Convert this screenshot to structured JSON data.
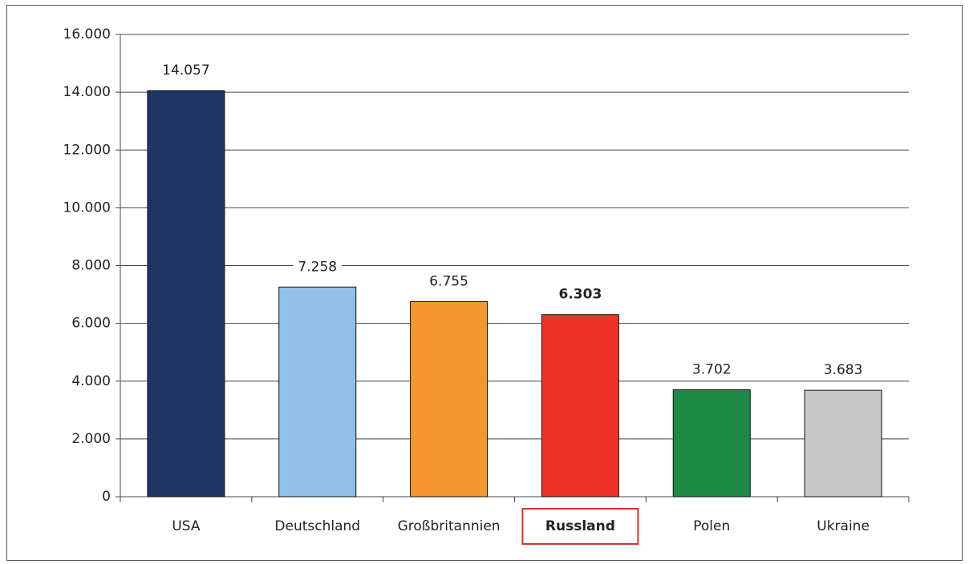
{
  "chart_data": {
    "type": "bar",
    "categories": [
      "USA",
      "Deutschland",
      "Großbritannien",
      "Russland",
      "Polen",
      "Ukraine"
    ],
    "values": [
      14057,
      7258,
      6755,
      6303,
      3702,
      3683
    ],
    "value_labels": [
      "14.057",
      "7.258",
      "6.755",
      "6.303",
      "3.702",
      "3.683"
    ],
    "colors": [
      "#1f3566",
      "#92c0e8",
      "#f7962e",
      "#ee3429",
      "#1e8a45",
      "#c8c8c8"
    ],
    "highlight": "Russland",
    "ylim": [
      0,
      16000
    ],
    "yticks": [
      0,
      {
        "value": 2000,
        "label": "2.000"
      },
      {
        "value": 4000,
        "label": "4.000"
      },
      {
        "value": 6000,
        "label": "6.000"
      },
      {
        "value": 8000,
        "label": "8.000"
      },
      {
        "value": 10000,
        "label": "10.000"
      },
      {
        "value": 12000,
        "label": "12.000"
      },
      {
        "value": 14000,
        "label": "14.000"
      },
      {
        "value": 16000,
        "label": "16.000"
      }
    ],
    "grid": true
  }
}
